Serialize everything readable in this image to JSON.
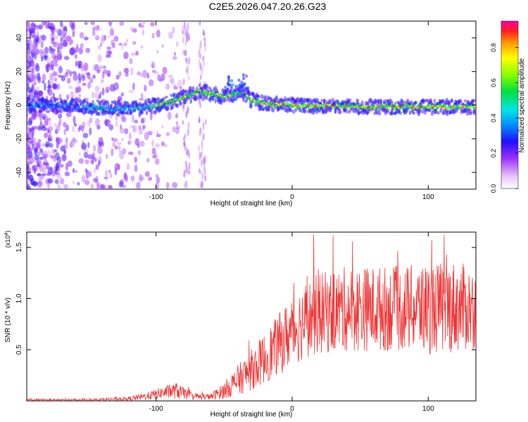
{
  "title": "C2E5.2026.047.20.26.G23",
  "chart_data": [
    {
      "type": "heatmap",
      "name": "spectrogram",
      "xlabel": "Height of straight line (km)",
      "ylabel": "Frequency (Hz)",
      "xlim": [
        -195,
        135
      ],
      "ylim": [
        -50,
        50
      ],
      "xticks": [
        -100,
        0,
        100
      ],
      "xtick_labels": [
        "-100",
        "0",
        "100"
      ],
      "yticks": [
        -40,
        -20,
        0,
        20,
        40
      ],
      "ytick_labels": [
        "-40",
        "-20",
        "0",
        "20",
        "40"
      ],
      "colorbar": {
        "label": "Normalized spectral amplitude",
        "range": [
          0,
          0.95
        ],
        "ticks": [
          0.0,
          0.2,
          0.4,
          0.6,
          0.8
        ],
        "tick_labels": [
          "0.0",
          "0.2",
          "0.4",
          "0.6",
          "0.8"
        ],
        "colormap": "rainbow"
      },
      "ridge": {
        "x": [
          -195,
          -170,
          -150,
          -130,
          -110,
          -95,
          -85,
          -75,
          -68,
          -60,
          -50,
          -45,
          -38,
          -35,
          -30,
          -20,
          0,
          50,
          100,
          135
        ],
        "y": [
          0,
          0,
          -1,
          -2,
          -2,
          1,
          3,
          6,
          8,
          7,
          5,
          6,
          8,
          7,
          3,
          1,
          0,
          -1,
          -1,
          -1
        ]
      }
    },
    {
      "type": "line",
      "name": "snr",
      "xlabel": "Height of straight line (km)",
      "ylabel": "SNR (10 * v/v)",
      "scale_label": "(x10",
      "scale_exponent": "4",
      "xlim": [
        -195,
        135
      ],
      "ylim": [
        0,
        1.65
      ],
      "xticks": [
        -100,
        0,
        100
      ],
      "xtick_labels": [
        "-100",
        "0",
        "100"
      ],
      "yticks": [
        0.5,
        1.0,
        1.5
      ],
      "ytick_labels": [
        "0.5",
        "1.0",
        "1.5"
      ],
      "color": "#ee3333",
      "envelope": {
        "x": [
          -195,
          -150,
          -120,
          -105,
          -95,
          -85,
          -75,
          -68,
          -60,
          -50,
          -40,
          -30,
          -20,
          -10,
          0,
          10,
          20,
          40,
          60,
          80,
          100,
          120,
          135
        ],
        "mean": [
          0.01,
          0.01,
          0.02,
          0.05,
          0.08,
          0.1,
          0.05,
          0.04,
          0.04,
          0.1,
          0.2,
          0.3,
          0.42,
          0.55,
          0.68,
          0.8,
          0.85,
          0.9,
          0.9,
          0.9,
          0.9,
          0.92,
          0.9
        ],
        "spread": [
          0.01,
          0.01,
          0.02,
          0.04,
          0.06,
          0.08,
          0.04,
          0.03,
          0.03,
          0.08,
          0.15,
          0.2,
          0.25,
          0.3,
          0.35,
          0.38,
          0.4,
          0.42,
          0.42,
          0.42,
          0.45,
          0.45,
          0.4
        ]
      }
    }
  ]
}
